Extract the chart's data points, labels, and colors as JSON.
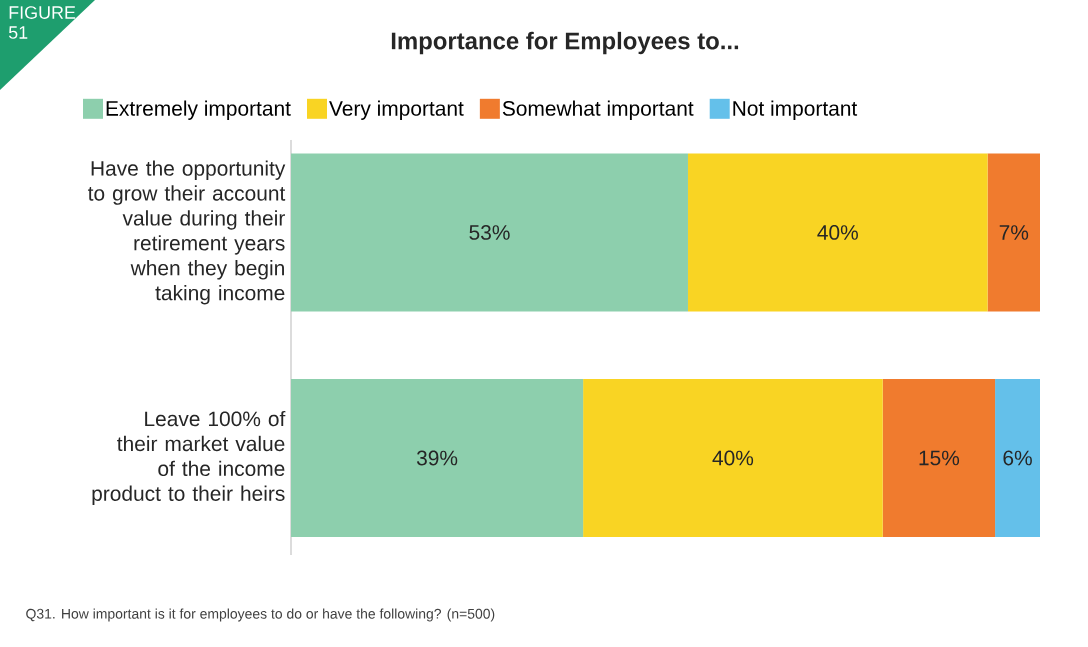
{
  "chart_data": {
    "type": "bar",
    "orientation": "horizontal",
    "stacked": true,
    "title": "Importance for Employees to...",
    "categories": [
      "Have the opportunity to grow their account value during their retirement years when they begin taking income",
      "Leave 100% of their market value of the income product to their heirs"
    ],
    "series": [
      {
        "name": "Extremely important",
        "color": "#8dcfad",
        "values": [
          53,
          39
        ],
        "value_labels": [
          "53%",
          "39%"
        ]
      },
      {
        "name": "Very important",
        "color": "#f9d423",
        "values": [
          40,
          40
        ],
        "value_labels": [
          "40%",
          "40%"
        ]
      },
      {
        "name": "Somewhat important",
        "color": "#f07b2e",
        "values": [
          7,
          15
        ],
        "value_labels": [
          "7%",
          "15%"
        ]
      },
      {
        "name": "Not important",
        "color": "#64c0ea",
        "values": [
          null,
          6
        ],
        "value_labels": [
          null,
          "6%"
        ]
      }
    ],
    "tick_labels": "y",
    "legend": "top",
    "annotations": [
      "FIGURE 51",
      "Q31. How important is it for employees to do or have the following? (n=500)"
    ]
  }
}
